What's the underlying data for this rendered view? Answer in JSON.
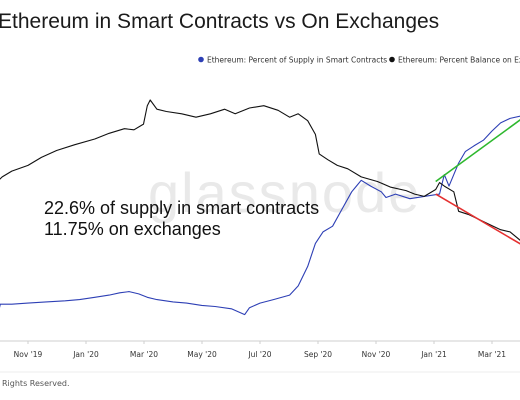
{
  "chart_data": {
    "type": "line",
    "title": "Ethereum in Smart Contracts vs On Exchanges",
    "watermark": "glassnode",
    "footer": "Rights Reserved.",
    "x_ticks": [
      "Nov '19",
      "Jan '20",
      "Mar '20",
      "May '20",
      "Jul '20",
      "Sep '20",
      "Nov '20",
      "Jan '21",
      "Mar '21"
    ],
    "annotations": [
      "22.6% of supply in smart contracts",
      "11.75% on exchanges"
    ],
    "grid": false,
    "legend_position": "top-right",
    "series": [
      {
        "name": "Ethereum: Percent of Supply in Smart Contracts",
        "color": "#2d3fb5",
        "points": [
          [
            "2019-09-25",
            5.5
          ],
          [
            "2019-10-01",
            5.5
          ],
          [
            "2019-10-03",
            6.2
          ],
          [
            "2019-10-15",
            6.2
          ],
          [
            "2019-11-01",
            6.3
          ],
          [
            "2019-11-20",
            6.4
          ],
          [
            "2019-12-10",
            6.5
          ],
          [
            "2019-12-25",
            6.6
          ],
          [
            "2020-01-10",
            6.8
          ],
          [
            "2020-01-25",
            7.0
          ],
          [
            "2020-02-05",
            7.2
          ],
          [
            "2020-02-15",
            7.3
          ],
          [
            "2020-02-25",
            7.1
          ],
          [
            "2020-03-05",
            6.8
          ],
          [
            "2020-03-15",
            6.6
          ],
          [
            "2020-04-01",
            6.4
          ],
          [
            "2020-04-15",
            6.3
          ],
          [
            "2020-05-01",
            6.1
          ],
          [
            "2020-05-15",
            6.0
          ],
          [
            "2020-06-01",
            5.8
          ],
          [
            "2020-06-15",
            5.3
          ],
          [
            "2020-06-20",
            5.9
          ],
          [
            "2020-07-01",
            6.3
          ],
          [
            "2020-07-15",
            6.6
          ],
          [
            "2020-08-01",
            7.0
          ],
          [
            "2020-08-10",
            7.8
          ],
          [
            "2020-08-20",
            9.5
          ],
          [
            "2020-08-28",
            11.5
          ],
          [
            "2020-09-05",
            12.5
          ],
          [
            "2020-09-15",
            13.0
          ],
          [
            "2020-09-25",
            14.5
          ],
          [
            "2020-10-05",
            16.0
          ],
          [
            "2020-10-10",
            16.5
          ],
          [
            "2020-10-15",
            17.0
          ],
          [
            "2020-10-25",
            16.5
          ],
          [
            "2020-11-05",
            16.0
          ],
          [
            "2020-11-10",
            15.5
          ],
          [
            "2020-11-20",
            15.8
          ],
          [
            "2020-12-05",
            15.4
          ],
          [
            "2020-12-20",
            15.6
          ],
          [
            "2021-01-05",
            15.8
          ],
          [
            "2021-01-10",
            17.5
          ],
          [
            "2021-01-15",
            16.5
          ],
          [
            "2021-01-20",
            17.5
          ],
          [
            "2021-01-25",
            18.5
          ],
          [
            "2021-02-01",
            19.5
          ],
          [
            "2021-02-10",
            20.0
          ],
          [
            "2021-02-20",
            20.5
          ],
          [
            "2021-03-01",
            21.3
          ],
          [
            "2021-03-10",
            22.0
          ],
          [
            "2021-03-20",
            22.4
          ],
          [
            "2021-03-31",
            22.6
          ]
        ]
      },
      {
        "name": "Ethereum: Percent Balance on Exchanges",
        "color": "#111111",
        "points": [
          [
            "2019-09-25",
            16.5
          ],
          [
            "2019-10-05",
            17.3
          ],
          [
            "2019-10-15",
            17.8
          ],
          [
            "2019-11-01",
            18.3
          ],
          [
            "2019-11-15",
            19.0
          ],
          [
            "2019-12-01",
            19.6
          ],
          [
            "2019-12-20",
            20.1
          ],
          [
            "2020-01-10",
            20.6
          ],
          [
            "2020-01-25",
            21.1
          ],
          [
            "2020-02-10",
            21.5
          ],
          [
            "2020-02-20",
            21.4
          ],
          [
            "2020-03-01",
            21.9
          ],
          [
            "2020-03-05",
            23.5
          ],
          [
            "2020-03-08",
            24.0
          ],
          [
            "2020-03-15",
            23.2
          ],
          [
            "2020-03-25",
            23.0
          ],
          [
            "2020-04-10",
            22.8
          ],
          [
            "2020-04-25",
            22.5
          ],
          [
            "2020-05-10",
            22.8
          ],
          [
            "2020-05-25",
            23.2
          ],
          [
            "2020-06-05",
            22.8
          ],
          [
            "2020-06-20",
            23.3
          ],
          [
            "2020-07-05",
            23.5
          ],
          [
            "2020-07-20",
            23.1
          ],
          [
            "2020-08-01",
            22.5
          ],
          [
            "2020-08-10",
            22.8
          ],
          [
            "2020-08-20",
            22.2
          ],
          [
            "2020-08-28",
            21.0
          ],
          [
            "2020-09-01",
            19.3
          ],
          [
            "2020-09-10",
            18.8
          ],
          [
            "2020-09-20",
            18.3
          ],
          [
            "2020-10-01",
            18.0
          ],
          [
            "2020-10-15",
            17.3
          ],
          [
            "2020-11-01",
            16.9
          ],
          [
            "2020-11-15",
            16.4
          ],
          [
            "2020-12-01",
            16.1
          ],
          [
            "2020-12-10",
            15.8
          ],
          [
            "2020-12-20",
            15.6
          ],
          [
            "2021-01-01",
            16.2
          ],
          [
            "2021-01-05",
            16.8
          ],
          [
            "2021-01-10",
            16.5
          ],
          [
            "2021-01-20",
            16.0
          ],
          [
            "2021-01-25",
            14.3
          ],
          [
            "2021-02-05",
            14.0
          ],
          [
            "2021-02-15",
            13.6
          ],
          [
            "2021-02-25",
            13.2
          ],
          [
            "2021-03-10",
            12.7
          ],
          [
            "2021-03-20",
            12.5
          ],
          [
            "2021-03-31",
            11.75
          ]
        ]
      }
    ],
    "trend_lines": [
      {
        "color": "#2eb82e",
        "points": [
          [
            "2021-01-01",
            16.9
          ],
          [
            "2021-04-05",
            22.6
          ]
        ]
      },
      {
        "color": "#e53030",
        "points": [
          [
            "2021-01-01",
            15.8
          ],
          [
            "2021-04-05",
            11.2
          ]
        ]
      }
    ]
  }
}
